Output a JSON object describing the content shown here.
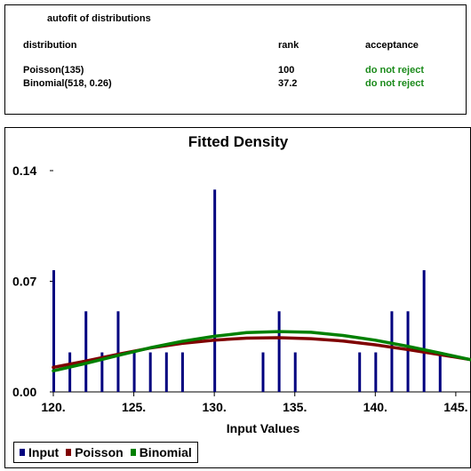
{
  "fit": {
    "title": "autofit of distributions",
    "headers": {
      "distribution": "distribution",
      "rank": "rank",
      "acceptance": "acceptance"
    },
    "rows": [
      {
        "distribution": "Poisson(135)",
        "rank": "100",
        "acceptance": "do not reject"
      },
      {
        "distribution": "Binomial(518, 0.26)",
        "rank": "37.2",
        "acceptance": "do not reject"
      }
    ],
    "accept_color": "#1a8a1a"
  },
  "chart_data": {
    "type": "bar",
    "title": "Fitted Density",
    "xlabel": "Input Values",
    "ylabel": "",
    "xlim": [
      120,
      146
    ],
    "ylim": [
      0,
      0.14
    ],
    "x_ticks": [
      "120.",
      "125.",
      "130.",
      "135.",
      "140.",
      "145."
    ],
    "y_ticks": [
      "0.00",
      "0.07",
      "0.14"
    ],
    "legend": [
      "Input",
      "Poisson",
      "Binomial"
    ],
    "legend_position": "bottom-left",
    "series": [
      {
        "name": "Input",
        "kind": "bar",
        "color": "#00007f",
        "x": [
          120,
          121,
          122,
          123,
          124,
          125,
          126,
          127,
          128,
          130,
          133,
          134,
          135,
          139,
          140,
          141,
          142,
          143,
          144
        ],
        "values": [
          0.077,
          0.025,
          0.051,
          0.025,
          0.051,
          0.025,
          0.025,
          0.025,
          0.025,
          0.128,
          0.025,
          0.051,
          0.025,
          0.025,
          0.025,
          0.051,
          0.051,
          0.077,
          0.025
        ]
      },
      {
        "name": "Poisson",
        "kind": "line",
        "color": "#7f0000",
        "x": [
          120,
          122,
          124,
          126,
          128,
          130,
          132,
          134,
          136,
          138,
          140,
          142,
          144,
          146
        ],
        "values": [
          0.0155,
          0.0195,
          0.0238,
          0.0277,
          0.0307,
          0.0328,
          0.034,
          0.0343,
          0.0337,
          0.0322,
          0.0298,
          0.0268,
          0.0236,
          0.0203
        ]
      },
      {
        "name": "Binomial",
        "kind": "line",
        "color": "#008000",
        "x": [
          120,
          122,
          124,
          126,
          128,
          130,
          132,
          134,
          136,
          138,
          140,
          142,
          144,
          146
        ],
        "values": [
          0.0133,
          0.018,
          0.023,
          0.0279,
          0.032,
          0.0352,
          0.0375,
          0.0382,
          0.0377,
          0.0357,
          0.0327,
          0.0289,
          0.0246,
          0.0202
        ]
      }
    ]
  }
}
